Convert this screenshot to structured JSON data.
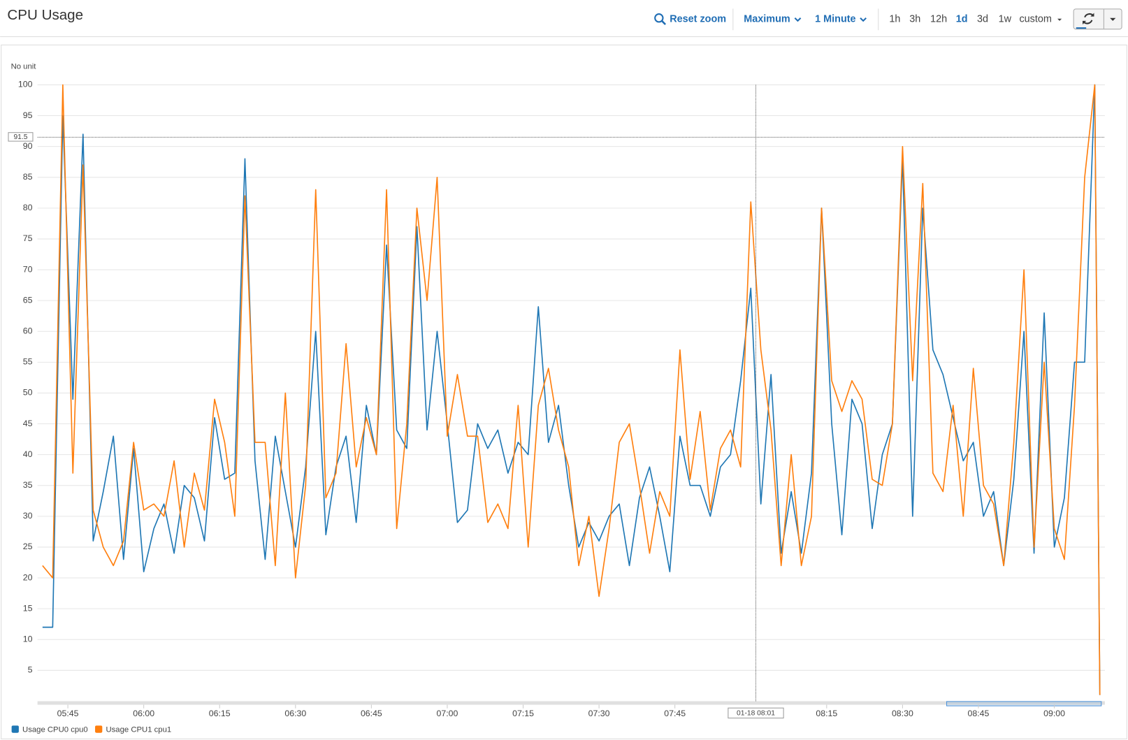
{
  "header": {
    "title": "CPU Usage"
  },
  "toolbar": {
    "reset_zoom": "Reset zoom",
    "statistic": "Maximum",
    "period": "1 Minute",
    "ranges": [
      "1h",
      "3h",
      "12h",
      "1d",
      "3d",
      "1w"
    ],
    "active": "1d",
    "custom": "custom"
  },
  "chart_data": {
    "type": "line",
    "y_label": "No unit",
    "x": [
      340,
      342,
      344,
      346,
      348,
      350,
      352,
      354,
      356,
      358,
      360,
      362,
      364,
      366,
      368,
      370,
      372,
      374,
      376,
      378,
      380,
      382,
      384,
      386,
      388,
      390,
      392,
      394,
      396,
      398,
      400,
      402,
      404,
      406,
      408,
      410,
      412,
      414,
      416,
      418,
      420,
      422,
      424,
      426,
      428,
      430,
      432,
      434,
      436,
      438,
      440,
      442,
      444,
      446,
      448,
      450,
      452,
      454,
      456,
      458,
      460,
      462,
      464,
      466,
      468,
      470,
      472,
      474,
      476,
      478,
      480,
      482,
      484,
      486,
      488,
      490,
      492,
      494,
      496,
      498,
      500,
      502,
      504,
      506,
      508,
      510,
      512,
      514,
      516,
      518,
      520,
      522,
      524,
      526,
      528,
      530,
      532,
      534,
      536,
      538,
      540,
      542,
      544,
      546,
      548,
      549
    ],
    "series": [
      {
        "name": "Usage CPU0 cpu0",
        "color": "#1f77b4",
        "values": [
          12,
          12,
          95,
          49,
          92,
          26,
          34,
          43,
          23,
          41,
          21,
          28,
          32,
          24,
          35,
          33,
          26,
          46,
          36,
          37,
          88,
          39,
          23,
          43,
          34,
          25,
          38,
          60,
          27,
          38,
          43,
          29,
          48,
          40,
          74,
          44,
          41,
          77,
          44,
          60,
          45,
          29,
          31,
          45,
          41,
          44,
          37,
          42,
          40,
          64,
          42,
          48,
          35,
          25,
          29,
          26,
          30,
          32,
          22,
          33,
          38,
          30,
          21,
          43,
          35,
          35,
          30,
          38,
          40,
          52,
          67,
          32,
          53,
          24,
          34,
          24,
          37,
          80,
          45,
          27,
          49,
          45,
          28,
          40,
          45,
          88,
          30,
          80,
          57,
          53,
          46,
          39,
          42,
          30,
          34,
          22,
          36,
          60,
          24,
          63,
          25,
          33,
          55,
          55,
          100,
          1
        ]
      },
      {
        "name": "Usage CPU1 cpu1",
        "color": "#ff7f0e",
        "values": [
          22,
          20,
          100,
          37,
          87,
          31,
          25,
          22,
          26,
          42,
          31,
          32,
          30,
          39,
          25,
          37,
          31,
          49,
          42,
          30,
          82,
          42,
          42,
          22,
          50,
          20,
          35,
          83,
          33,
          37,
          58,
          38,
          46,
          40,
          83,
          28,
          45,
          80,
          65,
          85,
          43,
          53,
          43,
          43,
          29,
          32,
          28,
          48,
          25,
          48,
          54,
          44,
          38,
          22,
          30,
          17,
          28,
          42,
          45,
          35,
          24,
          34,
          30,
          57,
          36,
          47,
          31,
          41,
          44,
          38,
          81,
          57,
          44,
          22,
          40,
          22,
          30,
          80,
          52,
          47,
          52,
          49,
          36,
          35,
          45,
          90,
          52,
          84,
          37,
          34,
          48,
          30,
          54,
          35,
          32,
          22,
          42,
          70,
          25,
          55,
          28,
          23,
          48,
          85,
          100,
          1
        ]
      }
    ],
    "xlim": [
      339,
      550
    ],
    "xticks": [
      {
        "value": 345,
        "label": "05:45"
      },
      {
        "value": 360,
        "label": "06:00"
      },
      {
        "value": 375,
        "label": "06:15"
      },
      {
        "value": 390,
        "label": "06:30"
      },
      {
        "value": 405,
        "label": "06:45"
      },
      {
        "value": 420,
        "label": "07:00"
      },
      {
        "value": 435,
        "label": "07:15"
      },
      {
        "value": 450,
        "label": "07:30"
      },
      {
        "value": 465,
        "label": "07:45"
      },
      {
        "value": 495,
        "label": "08:15"
      },
      {
        "value": 510,
        "label": "08:30"
      },
      {
        "value": 525,
        "label": "08:45"
      },
      {
        "value": 540,
        "label": "09:00"
      }
    ],
    "ylim": [
      0,
      100
    ],
    "yticks": [
      5,
      10,
      15,
      20,
      25,
      30,
      35,
      40,
      45,
      50,
      55,
      60,
      65,
      70,
      75,
      80,
      85,
      90,
      95,
      100
    ],
    "grid": true,
    "crosshair": {
      "y": 91.5,
      "x": {
        "value": 481,
        "label": "01-18 08:01"
      }
    }
  }
}
